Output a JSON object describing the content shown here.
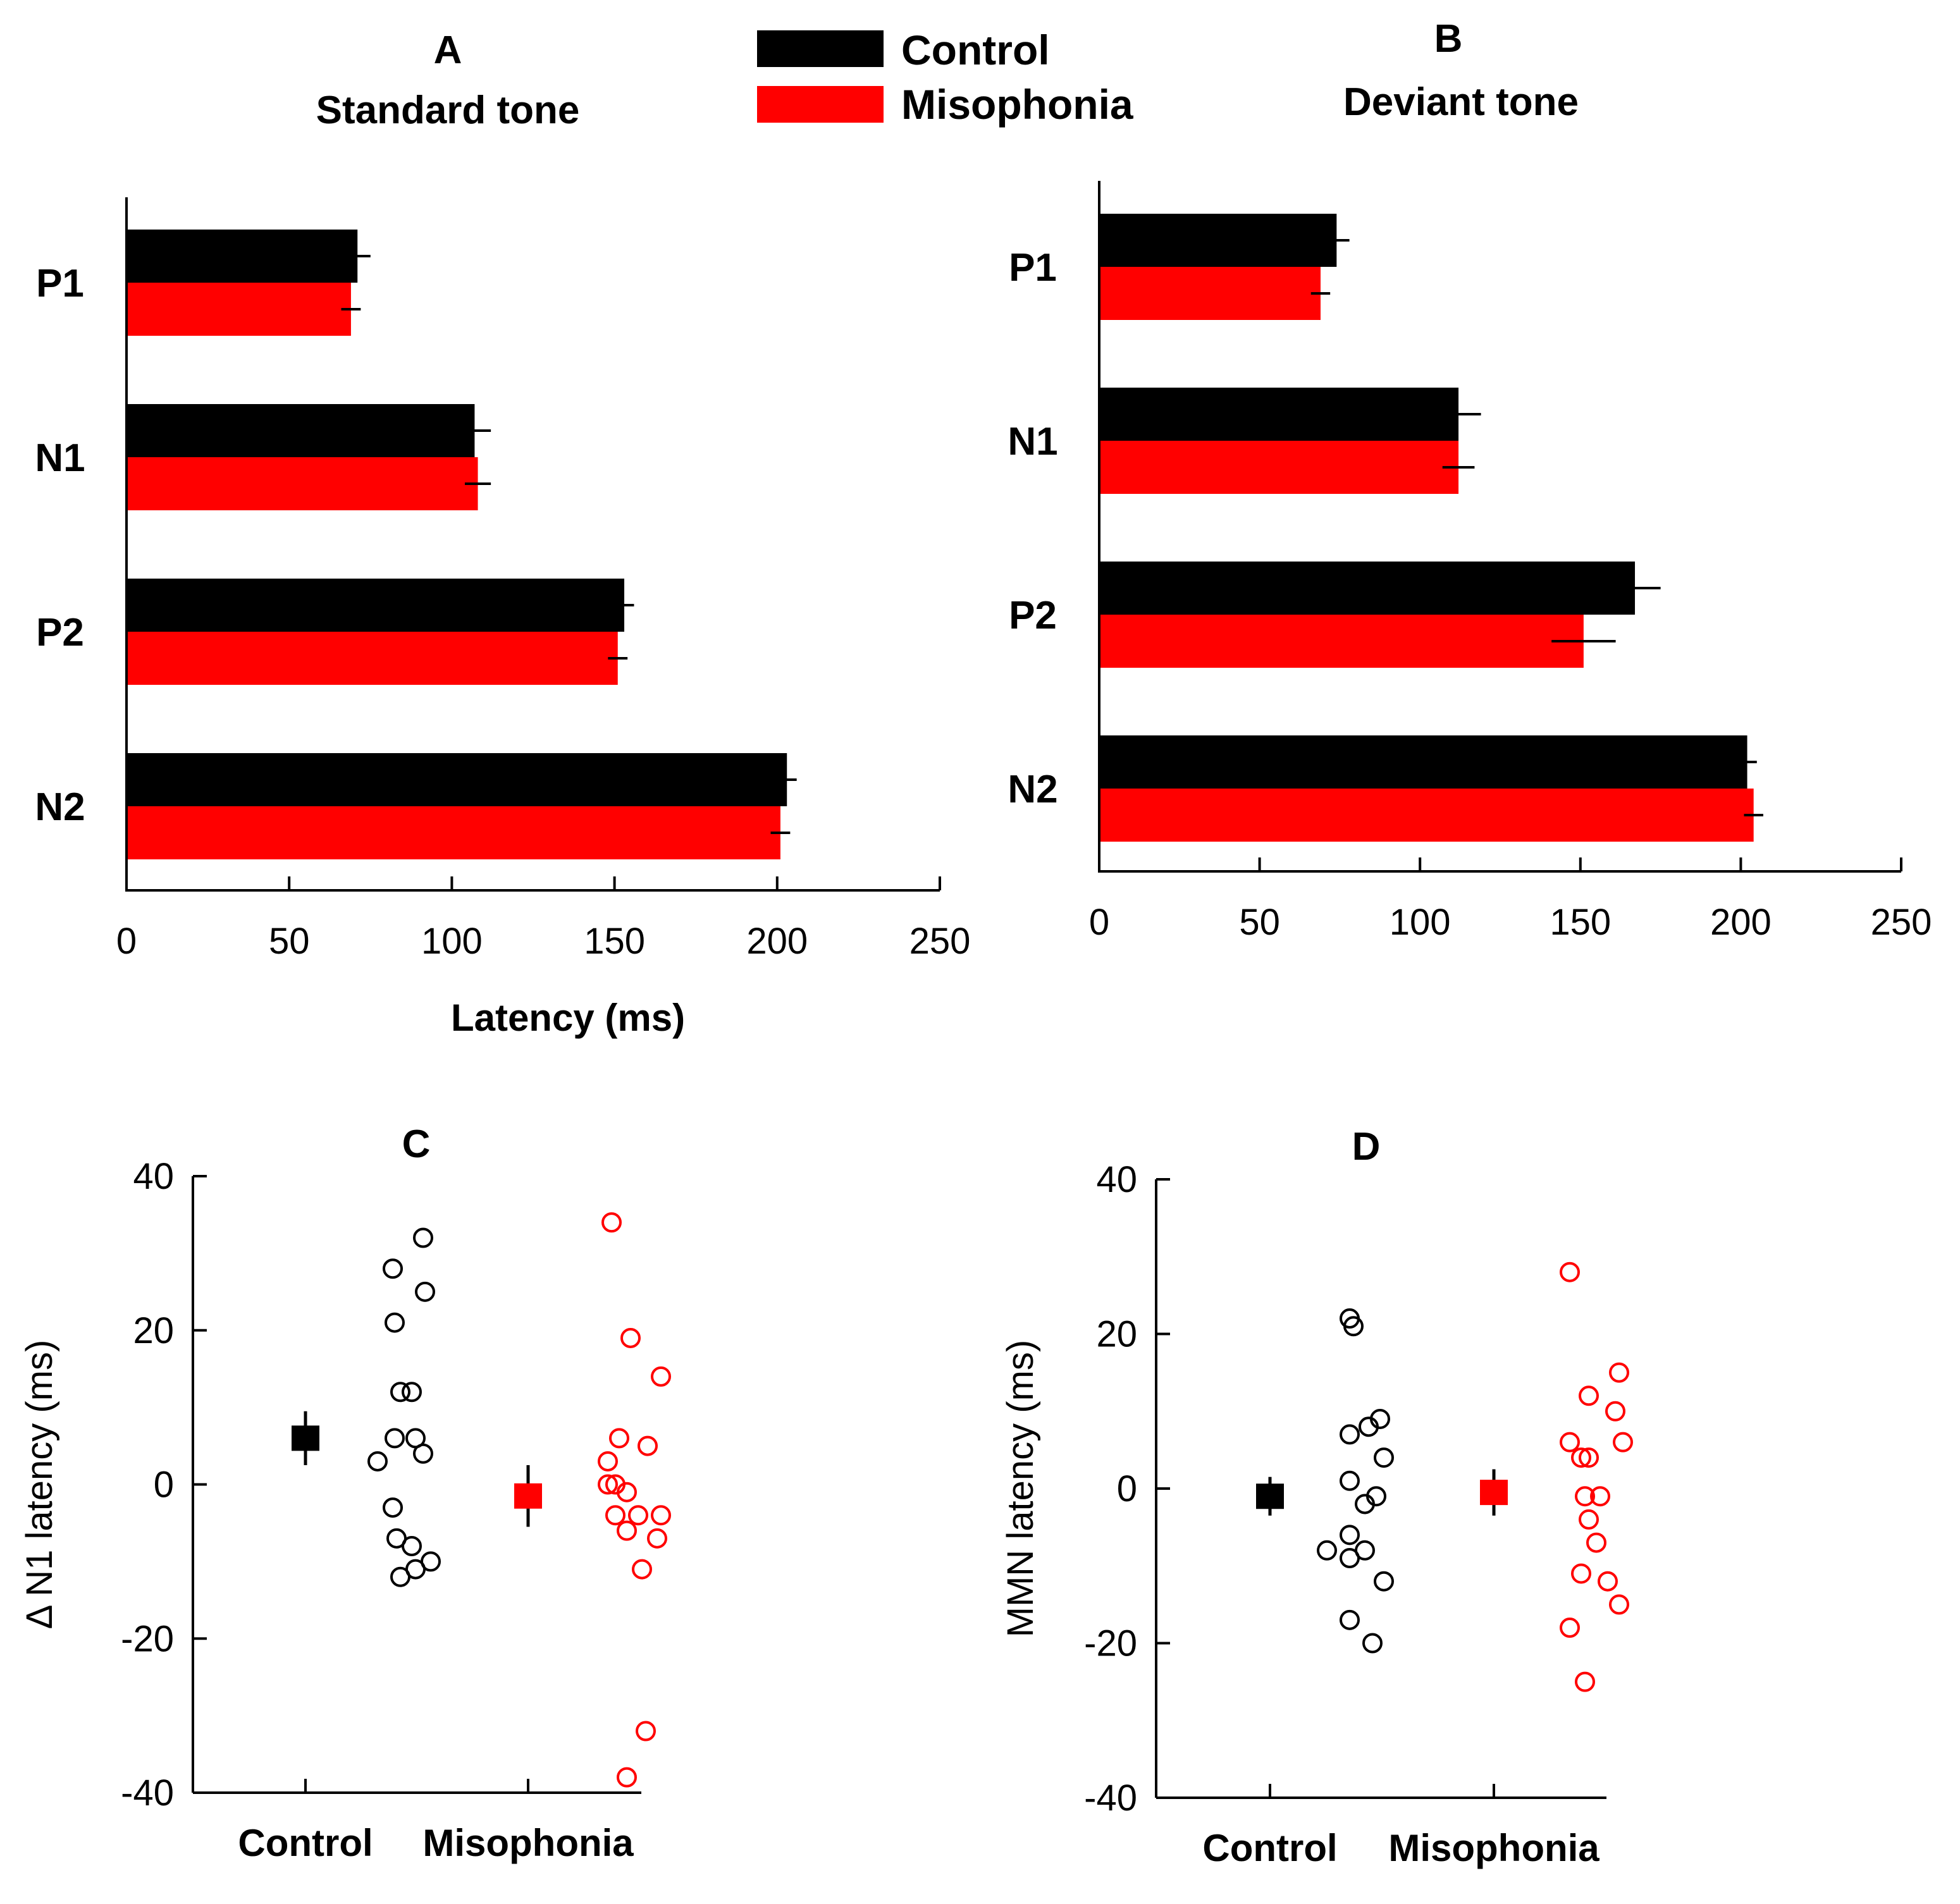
{
  "legend": {
    "items": [
      {
        "label": "Control",
        "color": "#000000"
      },
      {
        "label": "Misophonia",
        "color": "#ff0000"
      }
    ]
  },
  "chart_data": [
    {
      "id": "A",
      "type": "bar",
      "orientation": "horizontal",
      "panel_label": "A",
      "title": "Standard tone",
      "categories": [
        "P1",
        "N1",
        "P2",
        "N2"
      ],
      "series": [
        {
          "name": "Control",
          "color": "#000000",
          "values": [
            71,
            107,
            153,
            203
          ],
          "errors": [
            4,
            5,
            3,
            3
          ]
        },
        {
          "name": "Misophonia",
          "color": "#ff0000",
          "values": [
            69,
            108,
            151,
            201
          ],
          "errors": [
            3,
            4,
            3,
            3
          ]
        }
      ],
      "xlabel": "Latency (ms)",
      "xlim": [
        0,
        250
      ],
      "xticks": [
        "0",
        "50",
        "100",
        "150",
        "200",
        "250"
      ]
    },
    {
      "id": "B",
      "type": "bar",
      "orientation": "horizontal",
      "panel_label": "B",
      "title": "Deviant tone",
      "categories": [
        "P1",
        "N1",
        "P2",
        "N2"
      ],
      "series": [
        {
          "name": "Control",
          "color": "#000000",
          "values": [
            74,
            112,
            167,
            202
          ],
          "errors": [
            4,
            7,
            8,
            3
          ]
        },
        {
          "name": "Misophonia",
          "color": "#ff0000",
          "values": [
            69,
            112,
            151,
            204
          ],
          "errors": [
            3,
            5,
            10,
            3
          ]
        }
      ],
      "xlabel": "",
      "xlim": [
        0,
        250
      ],
      "xticks": [
        "0",
        "50",
        "100",
        "150",
        "200",
        "250"
      ]
    },
    {
      "id": "C",
      "type": "scatter",
      "panel_label": "C",
      "ylabel": "Δ N1 latency (ms)",
      "ylim": [
        -40,
        40
      ],
      "yticks": [
        "40",
        "20",
        "0",
        "-20",
        "-40"
      ],
      "groups": [
        {
          "name": "Control",
          "color": "#000000",
          "points": [
            [
              0.42,
              32
            ],
            [
              0.26,
              28
            ],
            [
              0.43,
              25
            ],
            [
              0.27,
              21
            ],
            [
              0.3,
              12
            ],
            [
              0.36,
              12
            ],
            [
              0.27,
              6
            ],
            [
              0.38,
              6
            ],
            [
              0.42,
              4
            ],
            [
              0.18,
              3
            ],
            [
              0.26,
              -3
            ],
            [
              0.28,
              -7
            ],
            [
              0.36,
              -8
            ],
            [
              0.46,
              -10
            ],
            [
              0.38,
              -11
            ],
            [
              0.3,
              -12
            ]
          ],
          "mean": 6,
          "err": 3.5
        },
        {
          "name": "Misophonia",
          "color": "#ff0000",
          "points": [
            [
              0.24,
              34
            ],
            [
              0.34,
              19
            ],
            [
              0.5,
              14
            ],
            [
              0.28,
              6
            ],
            [
              0.43,
              5
            ],
            [
              0.22,
              3
            ],
            [
              0.22,
              0
            ],
            [
              0.26,
              0
            ],
            [
              0.32,
              -1
            ],
            [
              0.26,
              -4
            ],
            [
              0.38,
              -4
            ],
            [
              0.5,
              -4
            ],
            [
              0.32,
              -6
            ],
            [
              0.48,
              -7
            ],
            [
              0.4,
              -11
            ],
            [
              0.42,
              -32
            ],
            [
              0.32,
              -38
            ]
          ],
          "mean": -1.5,
          "err": 4
        }
      ]
    },
    {
      "id": "D",
      "type": "scatter",
      "panel_label": "D",
      "ylabel": "MMN latency (ms)",
      "ylim": [
        -40,
        40
      ],
      "yticks": [
        "40",
        "20",
        "0",
        "-20",
        "-40"
      ],
      "groups": [
        {
          "name": "Control",
          "color": "#000000",
          "points": [
            [
              0.22,
              22
            ],
            [
              0.24,
              21
            ],
            [
              0.38,
              9
            ],
            [
              0.32,
              8
            ],
            [
              0.22,
              7
            ],
            [
              0.4,
              4
            ],
            [
              0.22,
              1
            ],
            [
              0.36,
              -1
            ],
            [
              0.3,
              -2
            ],
            [
              0.22,
              -6
            ],
            [
              0.3,
              -8
            ],
            [
              0.1,
              -8
            ],
            [
              0.22,
              -9
            ],
            [
              0.4,
              -12
            ],
            [
              0.22,
              -17
            ],
            [
              0.34,
              -20
            ]
          ],
          "mean": -1,
          "err": 2.5
        },
        {
          "name": "Misophonia",
          "color": "#ff0000",
          "points": [
            [
              0.2,
              28
            ],
            [
              0.46,
              15
            ],
            [
              0.3,
              12
            ],
            [
              0.44,
              10
            ],
            [
              0.2,
              6
            ],
            [
              0.48,
              6
            ],
            [
              0.26,
              4
            ],
            [
              0.3,
              4
            ],
            [
              0.28,
              -1
            ],
            [
              0.36,
              -1
            ],
            [
              0.3,
              -4
            ],
            [
              0.34,
              -7
            ],
            [
              0.26,
              -11
            ],
            [
              0.4,
              -12
            ],
            [
              0.46,
              -15
            ],
            [
              0.2,
              -18
            ],
            [
              0.28,
              -25
            ]
          ],
          "mean": -0.5,
          "err": 3
        }
      ]
    }
  ]
}
